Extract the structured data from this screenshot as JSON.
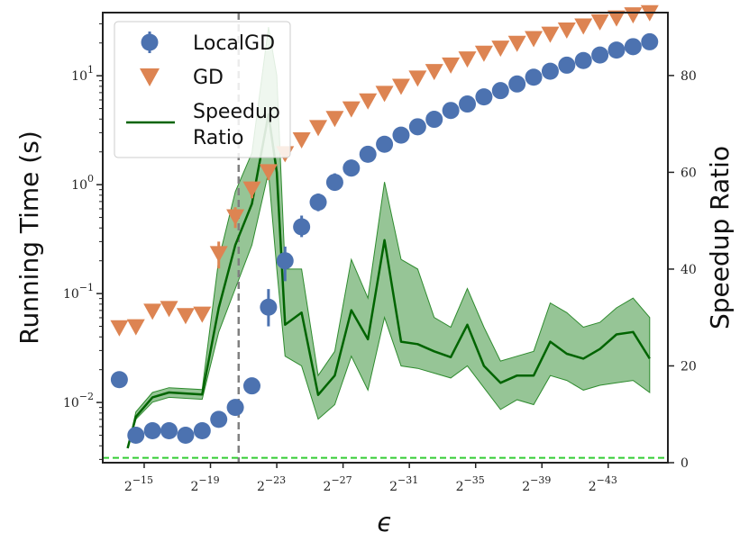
{
  "chart_data": {
    "type": "scatter",
    "xlabel": "ϵ",
    "ylabel_left": "Running Time (s)",
    "ylabel_right": "Speedup Ratio",
    "yscale_left": "log",
    "ylim_left": [
      0.0028,
      38
    ],
    "ylim_right": [
      0,
      93
    ],
    "xlim": [
      12.5,
      46.6
    ],
    "x_ticks": [
      {
        "value": 15,
        "base": "2",
        "exp": "−15"
      },
      {
        "value": 19,
        "base": "2",
        "exp": "−19"
      },
      {
        "value": 23,
        "base": "2",
        "exp": "−23"
      },
      {
        "value": 27,
        "base": "2",
        "exp": "−27"
      },
      {
        "value": 31,
        "base": "2",
        "exp": "−31"
      },
      {
        "value": 35,
        "base": "2",
        "exp": "−35"
      },
      {
        "value": 39,
        "base": "2",
        "exp": "−39"
      },
      {
        "value": 43,
        "base": "2",
        "exp": "−43"
      }
    ],
    "y_ticks_left": [
      {
        "value": 0.01,
        "base": "10",
        "exp": "−2"
      },
      {
        "value": 0.1,
        "base": "10",
        "exp": "−1"
      },
      {
        "value": 1,
        "base": "10",
        "exp": "0"
      },
      {
        "value": 10,
        "base": "10",
        "exp": "1"
      }
    ],
    "y_ticks_right": [
      {
        "value": 0,
        "label": "0"
      },
      {
        "value": 20,
        "label": "20"
      },
      {
        "value": 40,
        "label": "40"
      },
      {
        "value": 60,
        "label": "60"
      },
      {
        "value": 80,
        "label": "80"
      }
    ],
    "vline_x": 20.7,
    "hline_ratio": 1,
    "legend": [
      {
        "key": "localgd",
        "label": "LocalGD"
      },
      {
        "key": "gd",
        "label": "GD"
      },
      {
        "key": "speedup",
        "label_line1": "Speedup",
        "label_line2": "Ratio"
      }
    ],
    "colors": {
      "localgd": "#4c72b0",
      "gd": "#dd8452",
      "speedup": "#006400",
      "band": "#2e8b2e",
      "hline": "#33cc33",
      "vline": "#808080"
    },
    "series": [
      {
        "name": "LocalGD",
        "x": [
          13.5,
          14.5,
          15.5,
          16.5,
          17.5,
          18.5,
          19.5,
          20.5,
          21.5,
          22.5,
          23.5,
          24.5,
          25.5,
          26.5,
          27.5,
          28.5,
          29.5,
          30.5,
          31.5,
          32.5,
          33.5,
          34.5,
          35.5,
          36.5,
          37.5,
          38.5,
          39.5,
          40.5,
          41.5,
          42.5,
          43.5,
          44.5,
          45.5
        ],
        "y": [
          0.0162,
          0.005,
          0.0055,
          0.0055,
          0.005,
          0.0055,
          0.007,
          0.009,
          0.0142,
          0.075,
          0.2,
          0.41,
          0.69,
          1.05,
          1.42,
          1.9,
          2.35,
          2.85,
          3.4,
          3.98,
          4.8,
          5.5,
          6.4,
          7.3,
          8.4,
          9.7,
          11.0,
          12.5,
          13.8,
          15.5,
          17.2,
          18.5,
          20.5
        ],
        "err_lo": [
          0.0162,
          0.005,
          0.0055,
          0.0055,
          0.005,
          0.0055,
          0.007,
          0.009,
          0.0142,
          0.05,
          0.13,
          0.33,
          0.57,
          0.88,
          1.2,
          1.65,
          2.1,
          2.55,
          3.05,
          3.55,
          4.3,
          4.95,
          5.8,
          6.6,
          7.6,
          8.8,
          10.0,
          11.4,
          12.6,
          14.2,
          15.8,
          17.0,
          19.0
        ],
        "err_hi": [
          0.0162,
          0.005,
          0.0055,
          0.0055,
          0.005,
          0.0055,
          0.007,
          0.009,
          0.0142,
          0.11,
          0.27,
          0.52,
          0.83,
          1.27,
          1.7,
          2.2,
          2.7,
          3.25,
          3.8,
          4.45,
          5.35,
          6.1,
          7.05,
          8.0,
          9.2,
          10.6,
          12.0,
          13.6,
          15.0,
          16.8,
          18.6,
          20.0,
          22.0
        ]
      },
      {
        "name": "GD",
        "x": [
          13.5,
          14.5,
          15.5,
          16.5,
          17.5,
          18.5,
          19.5,
          20.5,
          21.5,
          22.5,
          23.5,
          24.5,
          25.5,
          26.5,
          27.5,
          28.5,
          29.5,
          30.5,
          31.5,
          32.5,
          33.5,
          34.5,
          35.5,
          36.5,
          37.5,
          38.5,
          39.5,
          40.5,
          41.5,
          42.5,
          43.5,
          44.5,
          45.5
        ],
        "y": [
          0.048,
          0.049,
          0.068,
          0.072,
          0.062,
          0.064,
          0.23,
          0.5,
          0.9,
          1.3,
          1.9,
          2.55,
          3.3,
          4.0,
          4.9,
          5.8,
          6.8,
          7.9,
          9.4,
          10.8,
          12.4,
          14.1,
          15.9,
          17.7,
          19.6,
          21.7,
          23.8,
          26.0,
          28.3,
          30.9,
          33.5,
          35.8,
          37.5
        ],
        "err_lo": [
          0.048,
          0.049,
          0.068,
          0.072,
          0.062,
          0.064,
          0.17,
          0.4,
          0.75,
          1.1,
          1.7,
          2.3,
          3.0,
          3.7,
          4.5,
          5.4,
          6.3,
          7.4,
          8.8,
          10.1,
          11.6,
          13.2,
          15.0,
          16.7,
          18.5,
          20.5,
          22.5,
          24.6,
          26.8,
          29.3,
          31.8,
          34.0,
          35.6
        ],
        "err_hi": [
          0.048,
          0.049,
          0.068,
          0.072,
          0.062,
          0.064,
          0.3,
          0.62,
          1.07,
          1.52,
          2.15,
          2.85,
          3.65,
          4.35,
          5.35,
          6.25,
          7.35,
          8.45,
          10.0,
          11.6,
          13.3,
          15.1,
          17.0,
          18.9,
          20.9,
          23.1,
          25.3,
          27.6,
          30.0,
          32.7,
          35.4,
          37.8,
          39.4
        ]
      },
      {
        "name": "Speedup Ratio",
        "x": [
          14,
          14.5,
          15.5,
          16.5,
          17.5,
          18.5,
          19.5,
          20.5,
          21.5,
          22.5,
          23,
          23.5,
          24.5,
          25.5,
          26.5,
          27.5,
          28.5,
          29.5,
          30.5,
          31.5,
          32.5,
          33.5,
          34.5,
          35.5,
          36.5,
          37.5,
          38.5,
          39.5,
          40.5,
          41.5,
          42.5,
          43.5,
          44.5,
          45.5
        ],
        "y": [
          3,
          9.5,
          13.5,
          14.5,
          14.3,
          14.1,
          32,
          45,
          53.5,
          72,
          60,
          28.5,
          31,
          14,
          18,
          31.5,
          25.5,
          46,
          25,
          24.5,
          23,
          21.8,
          28.5,
          20,
          16.5,
          18,
          18,
          25,
          22.5,
          21.5,
          23.5,
          26.5,
          27,
          21.5
        ],
        "band_lo": [
          3,
          9,
          12.5,
          13.5,
          13.3,
          13.1,
          27,
          36,
          45,
          60,
          40,
          22,
          20,
          9,
          12,
          22,
          15,
          30,
          20,
          19.5,
          18.5,
          17.5,
          20,
          15.5,
          11,
          13,
          12,
          18,
          17,
          15,
          16,
          16.5,
          17,
          14.5
        ],
        "band_hi": [
          3,
          10.5,
          14.5,
          15.5,
          15.3,
          15.1,
          42,
          56,
          64,
          90,
          80,
          40,
          40,
          18,
          23,
          42,
          34,
          58,
          42,
          40,
          30,
          28,
          36,
          28,
          21,
          22,
          23,
          33,
          31,
          28,
          29,
          32,
          34,
          30
        ]
      }
    ]
  }
}
